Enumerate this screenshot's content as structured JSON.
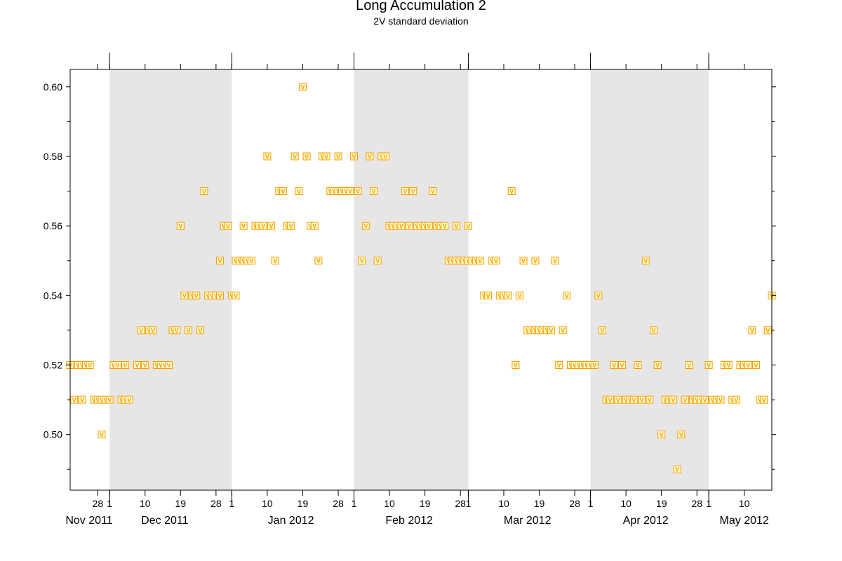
{
  "chart_data": {
    "type": "scatter",
    "title": "Long Accumulation 2",
    "subtitle": "2V standard deviation",
    "xlabel": "",
    "ylabel": "",
    "marker": "V",
    "marker_color": "#ff9900",
    "marker_fill": "#ffffcc",
    "shading_color": "#e6e6e6",
    "xlim": [
      "2011-11-21",
      "2012-05-17"
    ],
    "ylim": [
      0.484,
      0.605
    ],
    "y_ticks": [
      "0.50",
      "0.52",
      "0.54",
      "0.56",
      "0.58",
      "0.60"
    ],
    "x_day_ticks": [
      {
        "date": "2011-11-28",
        "label": "28"
      },
      {
        "date": "2011-12-01",
        "label": "1"
      },
      {
        "date": "2011-12-10",
        "label": "10"
      },
      {
        "date": "2011-12-19",
        "label": "19"
      },
      {
        "date": "2011-12-28",
        "label": "28"
      },
      {
        "date": "2012-01-01",
        "label": "1"
      },
      {
        "date": "2012-01-10",
        "label": "10"
      },
      {
        "date": "2012-01-19",
        "label": "19"
      },
      {
        "date": "2012-01-28",
        "label": "28"
      },
      {
        "date": "2012-02-01",
        "label": "1"
      },
      {
        "date": "2012-02-10",
        "label": "10"
      },
      {
        "date": "2012-02-19",
        "label": "19"
      },
      {
        "date": "2012-02-28",
        "label": "28"
      },
      {
        "date": "2012-03-01",
        "label": "1"
      },
      {
        "date": "2012-03-10",
        "label": "10"
      },
      {
        "date": "2012-03-19",
        "label": "19"
      },
      {
        "date": "2012-03-28",
        "label": "28"
      },
      {
        "date": "2012-04-01",
        "label": "1"
      },
      {
        "date": "2012-04-10",
        "label": "10"
      },
      {
        "date": "2012-04-19",
        "label": "19"
      },
      {
        "date": "2012-04-28",
        "label": "28"
      },
      {
        "date": "2012-05-01",
        "label": "1"
      },
      {
        "date": "2012-05-10",
        "label": "10"
      }
    ],
    "x_month_labels": [
      {
        "date": "2011-11-21",
        "label": "Nov 2011"
      },
      {
        "date": "2011-12-15",
        "label": "Dec 2011"
      },
      {
        "date": "2012-01-16",
        "label": "Jan 2012"
      },
      {
        "date": "2012-02-15",
        "label": "Feb 2012"
      },
      {
        "date": "2012-03-16",
        "label": "Mar 2012"
      },
      {
        "date": "2012-04-15",
        "label": "Apr 2012"
      },
      {
        "date": "2012-05-10",
        "label": "May 2012"
      }
    ],
    "month_boundaries": [
      "2011-12-01",
      "2012-01-01",
      "2012-02-01",
      "2012-03-01",
      "2012-04-01",
      "2012-05-01"
    ],
    "shaded_months": [
      [
        "2011-12-01",
        "2012-01-01"
      ],
      [
        "2012-02-01",
        "2012-03-01"
      ],
      [
        "2012-04-01",
        "2012-05-01"
      ]
    ],
    "series": [
      {
        "values": [
          [
            "2011-11-21",
            0.52
          ],
          [
            "2011-11-22",
            0.51
          ],
          [
            "2011-11-23",
            0.52
          ],
          [
            "2011-11-24",
            0.52
          ],
          [
            "2011-11-24",
            0.51
          ],
          [
            "2011-11-25",
            0.52
          ],
          [
            "2011-11-26",
            0.52
          ],
          [
            "2011-11-27",
            0.51
          ],
          [
            "2011-11-28",
            0.51
          ],
          [
            "2011-11-29",
            0.5
          ],
          [
            "2011-11-29",
            0.51
          ],
          [
            "2011-11-30",
            0.51
          ],
          [
            "2011-12-01",
            0.51
          ],
          [
            "2011-12-02",
            0.52
          ],
          [
            "2011-12-03",
            0.52
          ],
          [
            "2011-12-04",
            0.51
          ],
          [
            "2011-12-05",
            0.52
          ],
          [
            "2011-12-05",
            0.51
          ],
          [
            "2011-12-06",
            0.51
          ],
          [
            "2011-12-08",
            0.52
          ],
          [
            "2011-12-09",
            0.53
          ],
          [
            "2011-12-10",
            0.52
          ],
          [
            "2011-12-11",
            0.53
          ],
          [
            "2011-12-12",
            0.53
          ],
          [
            "2011-12-13",
            0.52
          ],
          [
            "2011-12-14",
            0.52
          ],
          [
            "2011-12-15",
            0.52
          ],
          [
            "2011-12-16",
            0.52
          ],
          [
            "2011-12-17",
            0.53
          ],
          [
            "2011-12-18",
            0.53
          ],
          [
            "2011-12-19",
            0.56
          ],
          [
            "2011-12-20",
            0.54
          ],
          [
            "2011-12-21",
            0.53
          ],
          [
            "2011-12-22",
            0.54
          ],
          [
            "2011-12-23",
            0.54
          ],
          [
            "2011-12-24",
            0.53
          ],
          [
            "2011-12-25",
            0.57
          ],
          [
            "2011-12-26",
            0.54
          ],
          [
            "2011-12-27",
            0.54
          ],
          [
            "2011-12-28",
            0.54
          ],
          [
            "2011-12-29",
            0.55
          ],
          [
            "2011-12-29",
            0.54
          ],
          [
            "2011-12-30",
            0.56
          ],
          [
            "2011-12-31",
            0.56
          ],
          [
            "2012-01-01",
            0.54
          ],
          [
            "2012-01-02",
            0.55
          ],
          [
            "2012-01-02",
            0.54
          ],
          [
            "2012-01-03",
            0.55
          ],
          [
            "2012-01-04",
            0.56
          ],
          [
            "2012-01-04",
            0.55
          ],
          [
            "2012-01-05",
            0.55
          ],
          [
            "2012-01-06",
            0.55
          ],
          [
            "2012-01-07",
            0.56
          ],
          [
            "2012-01-08",
            0.56
          ],
          [
            "2012-01-09",
            0.56
          ],
          [
            "2012-01-10",
            0.58
          ],
          [
            "2012-01-11",
            0.56
          ],
          [
            "2012-01-12",
            0.55
          ],
          [
            "2012-01-13",
            0.57
          ],
          [
            "2012-01-14",
            0.57
          ],
          [
            "2012-01-15",
            0.56
          ],
          [
            "2012-01-16",
            0.56
          ],
          [
            "2012-01-17",
            0.58
          ],
          [
            "2012-01-18",
            0.57
          ],
          [
            "2012-01-19",
            0.6
          ],
          [
            "2012-01-20",
            0.58
          ],
          [
            "2012-01-21",
            0.56
          ],
          [
            "2012-01-22",
            0.56
          ],
          [
            "2012-01-23",
            0.55
          ],
          [
            "2012-01-24",
            0.58
          ],
          [
            "2012-01-25",
            0.58
          ],
          [
            "2012-01-26",
            0.57
          ],
          [
            "2012-01-27",
            0.57
          ],
          [
            "2012-01-28",
            0.58
          ],
          [
            "2012-01-28",
            0.57
          ],
          [
            "2012-01-29",
            0.57
          ],
          [
            "2012-01-30",
            0.57
          ],
          [
            "2012-01-31",
            0.57
          ],
          [
            "2012-02-01",
            0.58
          ],
          [
            "2012-02-02",
            0.57
          ],
          [
            "2012-02-03",
            0.55
          ],
          [
            "2012-02-04",
            0.56
          ],
          [
            "2012-02-05",
            0.58
          ],
          [
            "2012-02-06",
            0.57
          ],
          [
            "2012-02-07",
            0.55
          ],
          [
            "2012-02-08",
            0.58
          ],
          [
            "2012-02-09",
            0.58
          ],
          [
            "2012-02-10",
            0.56
          ],
          [
            "2012-02-11",
            0.56
          ],
          [
            "2012-02-12",
            0.56
          ],
          [
            "2012-02-13",
            0.56
          ],
          [
            "2012-02-14",
            0.57
          ],
          [
            "2012-02-15",
            0.56
          ],
          [
            "2012-02-16",
            0.57
          ],
          [
            "2012-02-17",
            0.56
          ],
          [
            "2012-02-18",
            0.56
          ],
          [
            "2012-02-19",
            0.56
          ],
          [
            "2012-02-20",
            0.56
          ],
          [
            "2012-02-21",
            0.57
          ],
          [
            "2012-02-22",
            0.56
          ],
          [
            "2012-02-23",
            0.56
          ],
          [
            "2012-02-24",
            0.56
          ],
          [
            "2012-02-25",
            0.55
          ],
          [
            "2012-02-26",
            0.55
          ],
          [
            "2012-02-27",
            0.55
          ],
          [
            "2012-02-27",
            0.56
          ],
          [
            "2012-02-28",
            0.55
          ],
          [
            "2012-02-29",
            0.55
          ],
          [
            "2012-03-01",
            0.56
          ],
          [
            "2012-03-01",
            0.55
          ],
          [
            "2012-03-02",
            0.55
          ],
          [
            "2012-03-03",
            0.55
          ],
          [
            "2012-03-04",
            0.55
          ],
          [
            "2012-03-05",
            0.54
          ],
          [
            "2012-03-06",
            0.54
          ],
          [
            "2012-03-07",
            0.55
          ],
          [
            "2012-03-08",
            0.55
          ],
          [
            "2012-03-09",
            0.54
          ],
          [
            "2012-03-10",
            0.54
          ],
          [
            "2012-03-11",
            0.54
          ],
          [
            "2012-03-12",
            0.57
          ],
          [
            "2012-03-13",
            0.52
          ],
          [
            "2012-03-14",
            0.54
          ],
          [
            "2012-03-15",
            0.55
          ],
          [
            "2012-03-16",
            0.53
          ],
          [
            "2012-03-17",
            0.53
          ],
          [
            "2012-03-18",
            0.55
          ],
          [
            "2012-03-18",
            0.53
          ],
          [
            "2012-03-19",
            0.53
          ],
          [
            "2012-03-20",
            0.53
          ],
          [
            "2012-03-21",
            0.53
          ],
          [
            "2012-03-22",
            0.53
          ],
          [
            "2012-03-23",
            0.55
          ],
          [
            "2012-03-24",
            0.52
          ],
          [
            "2012-03-25",
            0.53
          ],
          [
            "2012-03-26",
            0.54
          ],
          [
            "2012-03-27",
            0.52
          ],
          [
            "2012-03-28",
            0.52
          ],
          [
            "2012-03-29",
            0.52
          ],
          [
            "2012-03-30",
            0.52
          ],
          [
            "2012-03-31",
            0.52
          ],
          [
            "2012-04-01",
            0.52
          ],
          [
            "2012-04-02",
            0.52
          ],
          [
            "2012-04-03",
            0.54
          ],
          [
            "2012-04-04",
            0.53
          ],
          [
            "2012-04-05",
            0.51
          ],
          [
            "2012-04-06",
            0.51
          ],
          [
            "2012-04-07",
            0.52
          ],
          [
            "2012-04-08",
            0.51
          ],
          [
            "2012-04-09",
            0.52
          ],
          [
            "2012-04-10",
            0.51
          ],
          [
            "2012-04-11",
            0.51
          ],
          [
            "2012-04-12",
            0.51
          ],
          [
            "2012-04-13",
            0.52
          ],
          [
            "2012-04-14",
            0.51
          ],
          [
            "2012-04-15",
            0.55
          ],
          [
            "2012-04-16",
            0.51
          ],
          [
            "2012-04-17",
            0.53
          ],
          [
            "2012-04-18",
            0.52
          ],
          [
            "2012-04-19",
            0.5
          ],
          [
            "2012-04-20",
            0.51
          ],
          [
            "2012-04-21",
            0.51
          ],
          [
            "2012-04-22",
            0.51
          ],
          [
            "2012-04-23",
            0.49
          ],
          [
            "2012-04-24",
            0.5
          ],
          [
            "2012-04-25",
            0.51
          ],
          [
            "2012-04-26",
            0.52
          ],
          [
            "2012-04-27",
            0.51
          ],
          [
            "2012-04-28",
            0.51
          ],
          [
            "2012-04-29",
            0.51
          ],
          [
            "2012-04-30",
            0.51
          ],
          [
            "2012-05-01",
            0.52
          ],
          [
            "2012-05-02",
            0.51
          ],
          [
            "2012-05-03",
            0.51
          ],
          [
            "2012-05-04",
            0.51
          ],
          [
            "2012-05-05",
            0.52
          ],
          [
            "2012-05-06",
            0.52
          ],
          [
            "2012-05-07",
            0.51
          ],
          [
            "2012-05-08",
            0.51
          ],
          [
            "2012-05-09",
            0.52
          ],
          [
            "2012-05-10",
            0.52
          ],
          [
            "2012-05-11",
            0.52
          ],
          [
            "2012-05-12",
            0.53
          ],
          [
            "2012-05-13",
            0.52
          ],
          [
            "2012-05-14",
            0.51
          ],
          [
            "2012-05-15",
            0.51
          ],
          [
            "2012-05-16",
            0.53
          ],
          [
            "2012-05-16",
            0.53
          ],
          [
            "2012-05-17",
            0.54
          ]
        ]
      }
    ],
    "grid": false,
    "legend": "none"
  }
}
